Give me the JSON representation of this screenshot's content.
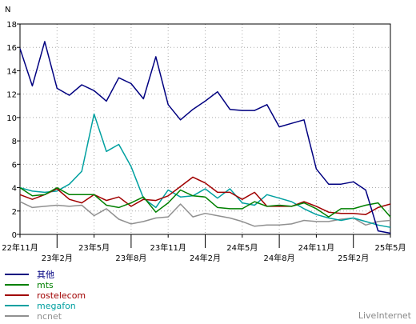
{
  "chart_data": {
    "type": "line",
    "ylabel": "N",
    "ylim": [
      0,
      18
    ],
    "yticks": [
      0,
      2,
      4,
      6,
      8,
      10,
      12,
      14,
      16,
      18
    ],
    "grid": true,
    "x_count": 31,
    "xticks": [
      {
        "i": 0,
        "label": "22年11月",
        "row": 0
      },
      {
        "i": 3,
        "label": "23年2月",
        "row": 1
      },
      {
        "i": 6,
        "label": "23年5月",
        "row": 0
      },
      {
        "i": 9,
        "label": "23年8月",
        "row": 1
      },
      {
        "i": 12,
        "label": "23年11月",
        "row": 0
      },
      {
        "i": 15,
        "label": "24年2月",
        "row": 1
      },
      {
        "i": 18,
        "label": "24年5月",
        "row": 0
      },
      {
        "i": 21,
        "label": "24年8月",
        "row": 1
      },
      {
        "i": 24,
        "label": "24年11月",
        "row": 0
      },
      {
        "i": 27,
        "label": "25年2月",
        "row": 1
      },
      {
        "i": 30,
        "label": "25年5月",
        "row": 0
      }
    ],
    "legend_position": "bottom-left",
    "series": [
      {
        "name": "其他",
        "color": "#000080",
        "values": [
          15.9,
          12.7,
          16.5,
          12.5,
          11.9,
          12.8,
          12.3,
          11.4,
          13.4,
          12.9,
          11.6,
          15.2,
          11.1,
          9.8,
          10.7,
          11.4,
          12.2,
          10.7,
          10.6,
          10.6,
          11.1,
          9.2,
          9.5,
          9.8,
          5.6,
          4.3,
          4.3,
          4.5,
          3.8,
          0.3,
          0.1
        ]
      },
      {
        "name": "mts",
        "color": "#008000",
        "values": [
          4.0,
          3.3,
          3.4,
          4.0,
          3.4,
          3.4,
          3.4,
          2.5,
          2.3,
          2.7,
          3.2,
          1.9,
          2.7,
          3.8,
          3.3,
          3.2,
          2.3,
          2.2,
          2.2,
          2.8,
          2.4,
          2.5,
          2.4,
          2.7,
          2.2,
          1.5,
          2.2,
          2.2,
          2.5,
          2.7,
          1.5
        ]
      },
      {
        "name": "rostelecom",
        "color": "#a00000",
        "values": [
          3.4,
          3.0,
          3.4,
          3.9,
          3.0,
          2.7,
          3.4,
          2.9,
          3.2,
          2.4,
          3.0,
          2.9,
          3.3,
          4.1,
          4.9,
          4.4,
          3.6,
          3.6,
          3.0,
          3.6,
          2.4,
          2.4,
          2.4,
          2.8,
          2.4,
          1.9,
          1.8,
          1.8,
          1.7,
          2.3,
          2.6
        ]
      },
      {
        "name": "megafon",
        "color": "#00a0a0",
        "values": [
          4.0,
          3.7,
          3.6,
          3.7,
          4.3,
          5.4,
          10.3,
          7.1,
          7.7,
          5.8,
          3.1,
          2.3,
          3.8,
          3.2,
          3.3,
          3.9,
          3.1,
          3.9,
          2.7,
          2.5,
          3.4,
          3.1,
          2.8,
          2.2,
          1.7,
          1.4,
          1.2,
          1.4,
          1.1,
          0.8,
          0.6
        ]
      },
      {
        "name": "ncnet",
        "color": "#909090",
        "values": [
          2.8,
          2.3,
          2.4,
          2.5,
          2.4,
          2.5,
          1.6,
          2.2,
          1.3,
          0.9,
          1.1,
          1.4,
          1.5,
          2.6,
          1.5,
          1.8,
          1.6,
          1.4,
          1.1,
          0.7,
          0.8,
          0.8,
          0.9,
          1.2,
          1.1,
          1.1,
          1.3,
          1.4,
          0.8,
          1.1,
          1.2
        ]
      }
    ]
  },
  "brand": "LiveInternet"
}
